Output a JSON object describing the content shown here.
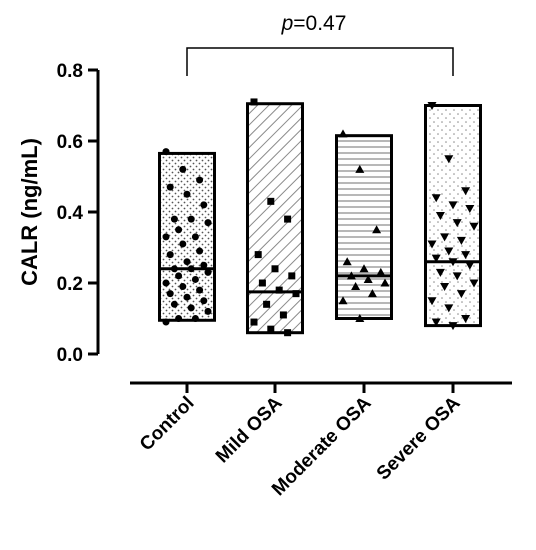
{
  "chart_data": {
    "type": "box",
    "ylabel": "CALR (ng/mL)",
    "ylim": [
      0.0,
      0.8
    ],
    "yticks": [
      0.0,
      0.2,
      0.4,
      0.6,
      0.8
    ],
    "ytick_labels": [
      "0.0",
      "0.2",
      "0.4",
      "0.6",
      "0.8"
    ],
    "categories": [
      "Control",
      "Mild OSA",
      "Moderate OSA",
      "Severe OSA"
    ],
    "annotation": {
      "p_prefix": "p",
      "p_value": "=0.47",
      "from": "Control",
      "to": "Severe OSA"
    },
    "groups": [
      {
        "name": "Control",
        "min": 0.095,
        "max": 0.565,
        "median": 0.24,
        "pattern": "dots",
        "marker": "circle",
        "points": [
          0.57,
          0.52,
          0.49,
          0.47,
          0.45,
          0.42,
          0.38,
          0.38,
          0.37,
          0.35,
          0.33,
          0.33,
          0.31,
          0.29,
          0.28,
          0.26,
          0.25,
          0.24,
          0.24,
          0.23,
          0.22,
          0.21,
          0.2,
          0.19,
          0.18,
          0.17,
          0.16,
          0.15,
          0.14,
          0.13,
          0.12,
          0.1,
          0.1,
          0.09
        ]
      },
      {
        "name": "Mild OSA",
        "min": 0.06,
        "max": 0.705,
        "median": 0.175,
        "pattern": "diagonal",
        "marker": "square",
        "points": [
          0.71,
          0.43,
          0.38,
          0.28,
          0.24,
          0.22,
          0.2,
          0.18,
          0.17,
          0.14,
          0.11,
          0.09,
          0.07,
          0.06
        ]
      },
      {
        "name": "Moderate OSA",
        "min": 0.1,
        "max": 0.615,
        "median": 0.22,
        "pattern": "horizontal",
        "marker": "triangle-up",
        "points": [
          0.62,
          0.52,
          0.35,
          0.26,
          0.24,
          0.23,
          0.22,
          0.21,
          0.2,
          0.19,
          0.17,
          0.15,
          0.1
        ]
      },
      {
        "name": "Severe OSA",
        "min": 0.08,
        "max": 0.7,
        "median": 0.26,
        "pattern": "sparse-dots",
        "marker": "triangle-down",
        "points": [
          0.7,
          0.55,
          0.46,
          0.44,
          0.42,
          0.41,
          0.39,
          0.37,
          0.36,
          0.33,
          0.32,
          0.31,
          0.29,
          0.28,
          0.27,
          0.26,
          0.25,
          0.23,
          0.22,
          0.2,
          0.19,
          0.17,
          0.15,
          0.13,
          0.1,
          0.09,
          0.08
        ]
      }
    ]
  }
}
